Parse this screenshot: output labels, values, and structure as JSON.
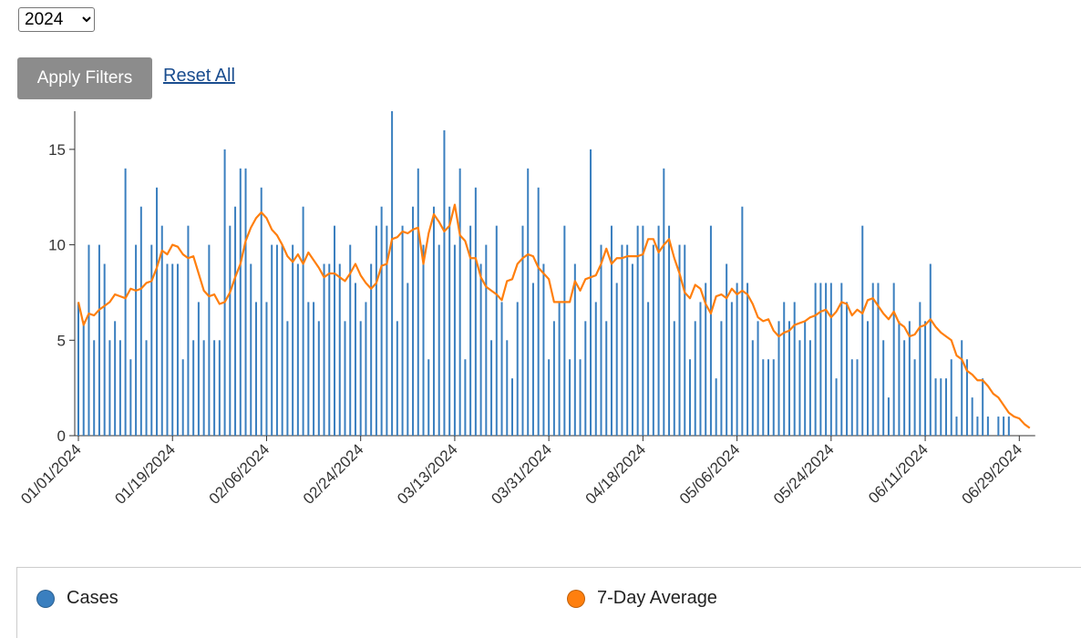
{
  "controls": {
    "year": "2024",
    "apply": "Apply Filters",
    "reset": "Reset All"
  },
  "chart_data": {
    "type": "bar-line",
    "x": [
      "01/01/2024",
      "01/02/2024",
      "01/03/2024",
      "01/04/2024",
      "01/05/2024",
      "01/06/2024",
      "01/07/2024",
      "01/08/2024",
      "01/09/2024",
      "01/10/2024",
      "01/11/2024",
      "01/12/2024",
      "01/13/2024",
      "01/14/2024",
      "01/15/2024",
      "01/16/2024",
      "01/17/2024",
      "01/18/2024",
      "01/19/2024",
      "01/20/2024",
      "01/21/2024",
      "01/22/2024",
      "01/23/2024",
      "01/24/2024",
      "01/25/2024",
      "01/26/2024",
      "01/27/2024",
      "01/28/2024",
      "01/29/2024",
      "01/30/2024",
      "01/31/2024",
      "02/01/2024",
      "02/02/2024",
      "02/03/2024",
      "02/04/2024",
      "02/05/2024",
      "02/06/2024",
      "02/07/2024",
      "02/08/2024",
      "02/09/2024",
      "02/10/2024",
      "02/11/2024",
      "02/12/2024",
      "02/13/2024",
      "02/14/2024",
      "02/15/2024",
      "02/16/2024",
      "02/17/2024",
      "02/18/2024",
      "02/19/2024",
      "02/20/2024",
      "02/21/2024",
      "02/22/2024",
      "02/23/2024",
      "02/24/2024",
      "02/25/2024",
      "02/26/2024",
      "02/27/2024",
      "02/28/2024",
      "02/29/2024",
      "03/01/2024",
      "03/02/2024",
      "03/03/2024",
      "03/04/2024",
      "03/05/2024",
      "03/06/2024",
      "03/07/2024",
      "03/08/2024",
      "03/09/2024",
      "03/10/2024",
      "03/11/2024",
      "03/12/2024",
      "03/13/2024",
      "03/14/2024",
      "03/15/2024",
      "03/16/2024",
      "03/17/2024",
      "03/18/2024",
      "03/19/2024",
      "03/20/2024",
      "03/21/2024",
      "03/22/2024",
      "03/23/2024",
      "03/24/2024",
      "03/25/2024",
      "03/26/2024",
      "03/27/2024",
      "03/28/2024",
      "03/29/2024",
      "03/30/2024",
      "03/31/2024",
      "04/01/2024",
      "04/02/2024",
      "04/03/2024",
      "04/04/2024",
      "04/05/2024",
      "04/06/2024",
      "04/07/2024",
      "04/08/2024",
      "04/09/2024",
      "04/10/2024",
      "04/11/2024",
      "04/12/2024",
      "04/13/2024",
      "04/14/2024",
      "04/15/2024",
      "04/16/2024",
      "04/17/2024",
      "04/18/2024",
      "04/19/2024",
      "04/20/2024",
      "04/21/2024",
      "04/22/2024",
      "04/23/2024",
      "04/24/2024",
      "04/25/2024",
      "04/26/2024",
      "04/27/2024",
      "04/28/2024",
      "04/29/2024",
      "04/30/2024",
      "05/01/2024",
      "05/02/2024",
      "05/03/2024",
      "05/04/2024",
      "05/05/2024",
      "05/06/2024",
      "05/07/2024",
      "05/08/2024",
      "05/09/2024",
      "05/10/2024",
      "05/11/2024",
      "05/12/2024",
      "05/13/2024",
      "05/14/2024",
      "05/15/2024",
      "05/16/2024",
      "05/17/2024",
      "05/18/2024",
      "05/19/2024",
      "05/20/2024",
      "05/21/2024",
      "05/22/2024",
      "05/23/2024",
      "05/24/2024",
      "05/25/2024",
      "05/26/2024",
      "05/27/2024",
      "05/28/2024",
      "05/29/2024",
      "05/30/2024",
      "05/31/2024",
      "06/01/2024",
      "06/02/2024",
      "06/03/2024",
      "06/04/2024",
      "06/05/2024",
      "06/06/2024",
      "06/07/2024",
      "06/08/2024",
      "06/09/2024",
      "06/10/2024",
      "06/11/2024",
      "06/12/2024",
      "06/13/2024",
      "06/14/2024",
      "06/15/2024",
      "06/16/2024",
      "06/17/2024",
      "06/18/2024",
      "06/19/2024",
      "06/20/2024",
      "06/21/2024",
      "06/22/2024",
      "06/23/2024",
      "06/24/2024",
      "06/25/2024",
      "06/26/2024",
      "06/27/2024",
      "06/28/2024",
      "06/29/2024",
      "06/30/2024",
      "07/01/2024"
    ],
    "series": [
      {
        "name": "Cases",
        "color": "#3a7fbf",
        "values": [
          7,
          6,
          10,
          5,
          10,
          9,
          5,
          6,
          5,
          14,
          4,
          10,
          12,
          5,
          10,
          13,
          11,
          9,
          9,
          9,
          4,
          11,
          5,
          7,
          5,
          10,
          5,
          5,
          15,
          11,
          12,
          14,
          14,
          9,
          7,
          13,
          7,
          10,
          10,
          10,
          6,
          10,
          9,
          12,
          7,
          7,
          6,
          9,
          9,
          11,
          9,
          6,
          10,
          8,
          6,
          7,
          9,
          11,
          12,
          11,
          17,
          6,
          11,
          8,
          12,
          14,
          10,
          4,
          12,
          10,
          16,
          12,
          10,
          14,
          4,
          11,
          13,
          9,
          10,
          5,
          11,
          7,
          5,
          3,
          7,
          11,
          14,
          8,
          13,
          9,
          4,
          6,
          7,
          11,
          4,
          9,
          4,
          6,
          15,
          7,
          10,
          6,
          11,
          8,
          10,
          10,
          9,
          11,
          11,
          7,
          10,
          11,
          14,
          11,
          6,
          10,
          10,
          4,
          6,
          7,
          8,
          11,
          3,
          6,
          9,
          7,
          8,
          12,
          8,
          5,
          6,
          4,
          4,
          4,
          6,
          7,
          6,
          7,
          5,
          6,
          5,
          8,
          8,
          8,
          8,
          3,
          8,
          7,
          4,
          4,
          11,
          6,
          8,
          8,
          5,
          2,
          8,
          6,
          5,
          6,
          4,
          7,
          6,
          9,
          3,
          3,
          3,
          4,
          1,
          5,
          4,
          2,
          1,
          3,
          1,
          0,
          1,
          1,
          1,
          0,
          0,
          0,
          0
        ]
      },
      {
        "name": "7-Day Average",
        "color": "#ff7f0e",
        "values": [
          7,
          5.8,
          6.4,
          6.3,
          6.6,
          6.8,
          7.0,
          7.4,
          7.3,
          7.2,
          7.7,
          7.6,
          7.7,
          8.0,
          8.1,
          8.8,
          9.7,
          9.5,
          10.0,
          9.9,
          9.5,
          9.3,
          9.4,
          8.5,
          7.6,
          7.3,
          7.4,
          6.9,
          7.0,
          7.5,
          8.3,
          9.0,
          10.2,
          10.9,
          11.4,
          11.7,
          11.4,
          10.8,
          10.5,
          10.0,
          9.4,
          9.1,
          9.5,
          9.0,
          9.6,
          9.2,
          8.8,
          8.3,
          8.5,
          8.5,
          8.3,
          8.1,
          8.5,
          9.0,
          8.4,
          8.0,
          7.7,
          8.0,
          8.9,
          9.0,
          10.3,
          10.4,
          10.7,
          10.6,
          10.8,
          10.9,
          9.0,
          10.6,
          11.6,
          11.2,
          10.7,
          11.0,
          12.1,
          10.5,
          10.2,
          9.3,
          9.3,
          8.3,
          7.8,
          7.6,
          7.4,
          7.1,
          8.1,
          8.2,
          9.0,
          9.3,
          9.5,
          9.4,
          8.8,
          8.5,
          8.2,
          7.0,
          7.0,
          7.0,
          7.0,
          8.1,
          7.6,
          8.2,
          8.3,
          8.4,
          9.0,
          9.8,
          9.0,
          9.3,
          9.3,
          9.4,
          9.4,
          9.4,
          9.5,
          10.3,
          10.3,
          9.6,
          10.0,
          10.3,
          9.3,
          8.5,
          7.5,
          7.2,
          7.9,
          7.7,
          6.9,
          6.4,
          7.3,
          7.4,
          7.2,
          7.7,
          7.4,
          7.6,
          7.4,
          6.9,
          6.2,
          6.0,
          6.1,
          5.5,
          5.2,
          5.4,
          5.5,
          5.8,
          5.9,
          6.0,
          6.2,
          6.3,
          6.5,
          6.6,
          6.2,
          6.5,
          7.0,
          6.9,
          6.3,
          6.6,
          6.4,
          7.1,
          7.2,
          6.8,
          6.4,
          6.1,
          6.5,
          5.9,
          5.7,
          5.2,
          5.3,
          5.7,
          5.8,
          6.1,
          5.7,
          5.4,
          5.2,
          5.0,
          4.2,
          4.0,
          3.4,
          3.2,
          2.9,
          2.9,
          2.6,
          2.2,
          2.0,
          1.6,
          1.2,
          1.0,
          0.9,
          0.6,
          0.4
        ]
      }
    ],
    "ylim": [
      0,
      17
    ],
    "yticks": [
      0,
      5,
      10,
      15
    ],
    "xticks": [
      "01/01/2024",
      "01/19/2024",
      "02/06/2024",
      "02/24/2024",
      "03/13/2024",
      "03/31/2024",
      "04/18/2024",
      "05/06/2024",
      "05/24/2024",
      "06/11/2024",
      "06/29/2024"
    ],
    "grid": false
  }
}
